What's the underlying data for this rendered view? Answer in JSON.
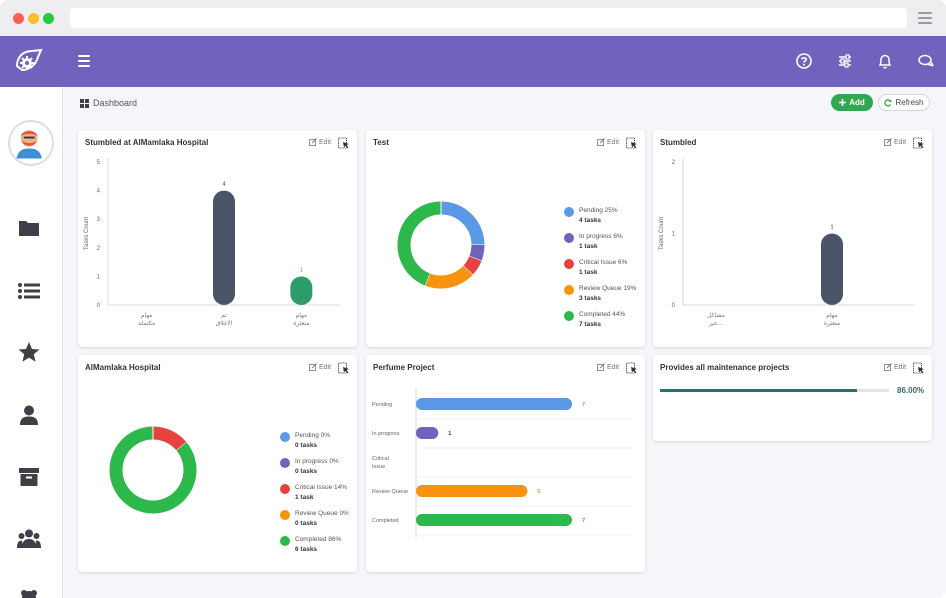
{
  "header": {
    "icons": [
      "help-icon",
      "sliders-icon",
      "bell-icon",
      "chat-icon"
    ]
  },
  "breadcrumb": {
    "label": "Dashboard"
  },
  "actions": {
    "add_label": "Add",
    "refresh_label": "Refresh"
  },
  "card_common": {
    "edit_label": "Edit"
  },
  "colors": {
    "primary": "#7063bd",
    "pending": "#5b98e6",
    "in_progress": "#7063bd",
    "critical": "#e8423f",
    "review": "#f7930f",
    "completed": "#2db84c",
    "slate": "#4b5569",
    "teal": "#2e9b6a"
  },
  "cards": [
    {
      "title": "Stumbled at AlMamlaka Hospital"
    },
    {
      "title": "Test"
    },
    {
      "title": "Stumbled"
    },
    {
      "title": "AlMamlaka Hospital"
    },
    {
      "title": "Perfume Project"
    },
    {
      "title": "Provides all maintenance projects"
    }
  ],
  "chart_data": [
    {
      "type": "bar",
      "title": "Stumbled at AlMamlaka Hospital",
      "ylabel": "Tasks Count",
      "ylim": [
        0,
        5
      ],
      "yticks": [
        "0",
        "1",
        "2",
        "3",
        "4",
        "5"
      ],
      "categories": [
        [
          "مهام",
          "مكتملة"
        ],
        [
          "تم",
          "الاغلاق"
        ],
        [
          "مهام",
          "متعثرة"
        ]
      ],
      "values": [
        null,
        4,
        1
      ],
      "value_labels": [
        "",
        "4",
        "1"
      ],
      "colors": [
        "#4b5569",
        "#4b5569",
        "#2e9b6a"
      ]
    },
    {
      "type": "pie",
      "title": "Test",
      "slices": [
        {
          "label": "Pending 25%",
          "count": "4 tasks",
          "value": 25,
          "color": "#5b98e6"
        },
        {
          "label": "In progress 6%",
          "count": "1 task",
          "value": 6,
          "color": "#7063bd"
        },
        {
          "label": "Critical Issue 6%",
          "count": "1 task",
          "value": 6,
          "color": "#e8423f"
        },
        {
          "label": "Review Queue 19%",
          "count": "3 tasks",
          "value": 19,
          "color": "#f7930f"
        },
        {
          "label": "Completed 44%",
          "count": "7 tasks",
          "value": 44,
          "color": "#2db84c"
        }
      ]
    },
    {
      "type": "bar",
      "title": "Stumbled",
      "ylabel": "Tasks Count",
      "ylim": [
        0,
        2
      ],
      "yticks": [
        "0",
        "1",
        "2"
      ],
      "categories": [
        [
          "مشاكل",
          "غير..."
        ],
        [
          "مهام",
          "متعثرة"
        ]
      ],
      "values": [
        null,
        1
      ],
      "value_labels": [
        "",
        "1"
      ],
      "colors": [
        "#4b5569",
        "#4b5569"
      ]
    },
    {
      "type": "pie",
      "title": "AlMamlaka Hospital",
      "slices": [
        {
          "label": "Pending 0%",
          "count": "0 tasks",
          "value": 0,
          "color": "#5b98e6"
        },
        {
          "label": "In progress 0%",
          "count": "0 tasks",
          "value": 0,
          "color": "#7063bd"
        },
        {
          "label": "Critical Issue 14%",
          "count": "1 task",
          "value": 14,
          "color": "#e8423f"
        },
        {
          "label": "Review Queue 0%",
          "count": "0 tasks",
          "value": 0,
          "color": "#f7930f"
        },
        {
          "label": "Completed 86%",
          "count": "6 tasks",
          "value": 86,
          "color": "#2db84c"
        }
      ]
    },
    {
      "type": "bar",
      "orientation": "horizontal",
      "title": "Perfume Project",
      "categories": [
        [
          "Pending"
        ],
        [
          "In progress"
        ],
        [
          "Critical",
          "Issue"
        ],
        [
          "Review Queue"
        ],
        [
          "Completed"
        ]
      ],
      "values": [
        7,
        1,
        0,
        5,
        7
      ],
      "value_labels": [
        "7",
        "1",
        "",
        "5",
        "7"
      ],
      "colors": [
        "#5b98e6",
        "#7063bd",
        "#e8423f",
        "#f7930f",
        "#2db84c"
      ],
      "xlim": [
        0,
        7
      ]
    }
  ],
  "progress": {
    "value": 86.0,
    "label": "86.00%"
  }
}
